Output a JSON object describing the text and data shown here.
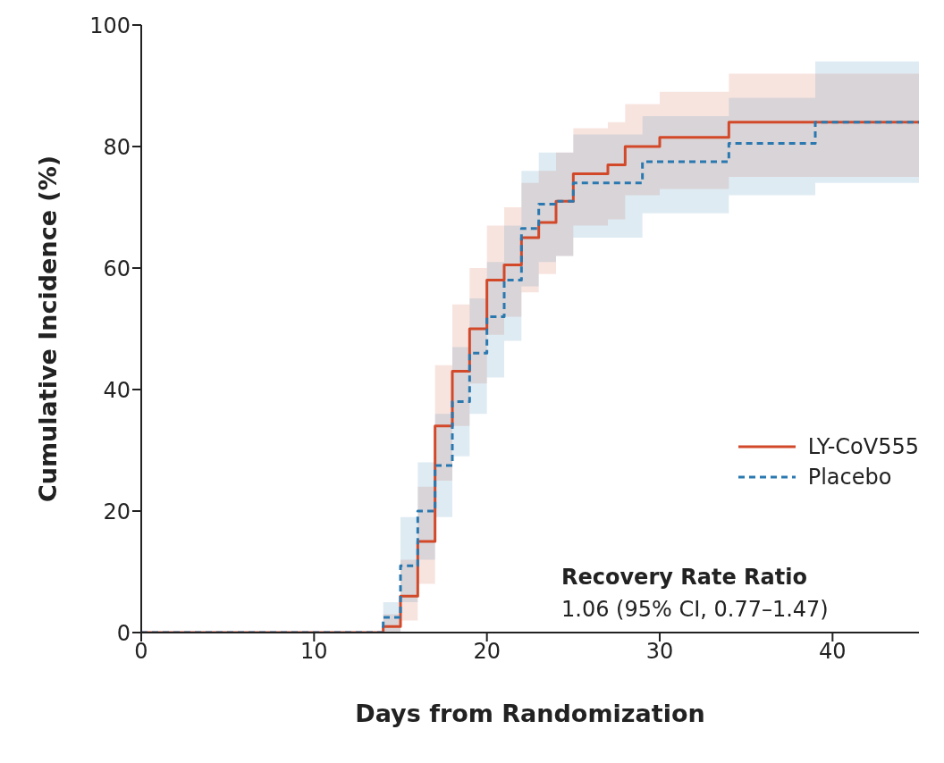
{
  "chart_data": {
    "type": "step",
    "xlabel": "Days from Randomization",
    "ylabel": "Cumulative Incidence (%)",
    "xlim": [
      0,
      45
    ],
    "xticks": [
      0,
      10,
      20,
      30,
      40
    ],
    "ylim": [
      0,
      100
    ],
    "yticks": [
      0,
      20,
      40,
      60,
      80,
      100
    ],
    "legend": "right",
    "marker": "none",
    "annotations": [
      "Recovery Rate Ratio",
      "1.06 (95% CI, 0.77–1.47)"
    ],
    "series": [
      {
        "name": "LY-CoV555",
        "color": "#d2492a",
        "line_style": "solid",
        "x": [
          0,
          14,
          15,
          16,
          17,
          18,
          19,
          20,
          21,
          22,
          23,
          24,
          25,
          27,
          28,
          30,
          34,
          45
        ],
        "values": [
          0,
          1,
          6,
          15,
          34,
          43,
          50,
          58,
          60.5,
          65,
          67.5,
          71,
          75.5,
          77,
          80,
          81.5,
          84,
          84
        ],
        "lower": [
          0,
          0,
          2,
          8,
          25,
          34,
          41,
          49,
          52,
          56,
          59,
          62,
          67,
          68,
          72,
          73,
          75,
          75
        ],
        "upper": [
          0,
          3,
          12,
          24,
          44,
          54,
          60,
          67,
          70,
          74,
          76,
          79,
          83,
          84,
          87,
          89,
          92,
          92
        ]
      },
      {
        "name": "Placebo",
        "color": "#2a78b0",
        "line_style": "dashed",
        "x": [
          0,
          14,
          15,
          16,
          17,
          18,
          19,
          20,
          21,
          22,
          23,
          24,
          25,
          29,
          34,
          39,
          45
        ],
        "values": [
          0,
          2.5,
          11,
          20,
          27.5,
          38,
          46,
          52,
          58,
          66.5,
          70.5,
          71,
          74,
          77.5,
          80.5,
          84,
          84
        ],
        "lower": [
          0,
          0,
          5,
          12,
          19,
          29,
          36,
          42,
          48,
          57,
          61,
          62,
          65,
          69,
          72,
          74,
          74
        ],
        "upper": [
          0,
          5,
          19,
          28,
          36,
          47,
          55,
          61,
          67,
          76,
          79,
          79,
          82,
          85,
          88,
          94,
          94
        ]
      }
    ]
  }
}
